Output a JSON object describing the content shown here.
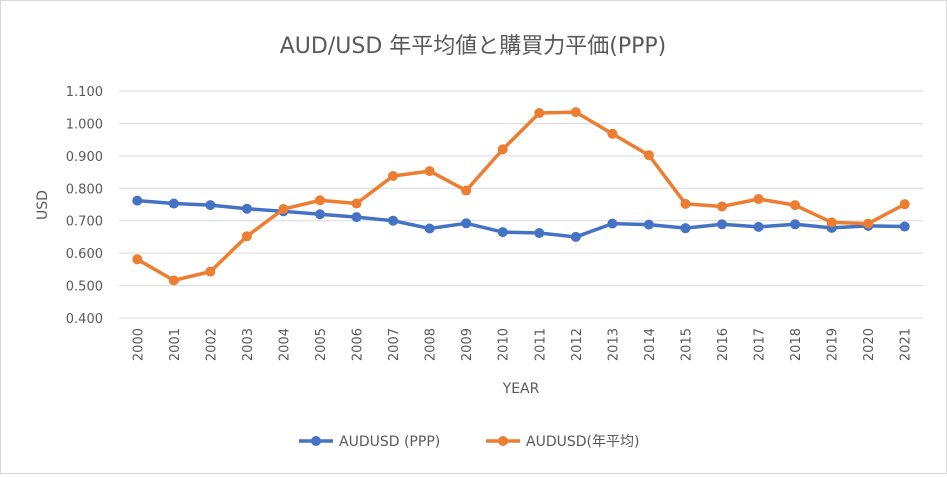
{
  "chart_data": {
    "type": "line",
    "title": "AUD/USD 年平均値と購買力平価(PPP)",
    "xlabel": "YEAR",
    "ylabel": "USD",
    "ylim": [
      0.4,
      1.1
    ],
    "yticks": [
      "0.400",
      "0.500",
      "0.600",
      "0.700",
      "0.800",
      "0.900",
      "1.000",
      "1.100"
    ],
    "grid": true,
    "legend_position": "bottom",
    "categories": [
      "2000",
      "2001",
      "2002",
      "2003",
      "2004",
      "2005",
      "2006",
      "2007",
      "2008",
      "2009",
      "2010",
      "2011",
      "2012",
      "2013",
      "2014",
      "2015",
      "2016",
      "2017",
      "2018",
      "2019",
      "2020",
      "2021"
    ],
    "series": [
      {
        "name": "AUDUSD (PPP)",
        "color": "#4472c4",
        "values": [
          0.762,
          0.753,
          0.748,
          0.737,
          0.729,
          0.72,
          0.711,
          0.7,
          0.676,
          0.692,
          0.665,
          0.662,
          0.65,
          0.691,
          0.688,
          0.677,
          0.689,
          0.681,
          0.689,
          0.678,
          0.684,
          0.682
        ]
      },
      {
        "name": "AUDUSD(年平均)",
        "color": "#ed7d31",
        "values": [
          0.581,
          0.516,
          0.543,
          0.652,
          0.736,
          0.763,
          0.753,
          0.838,
          0.853,
          0.793,
          0.92,
          1.032,
          1.035,
          0.968,
          0.902,
          0.752,
          0.744,
          0.767,
          0.748,
          0.695,
          0.691,
          0.751
        ]
      }
    ]
  }
}
